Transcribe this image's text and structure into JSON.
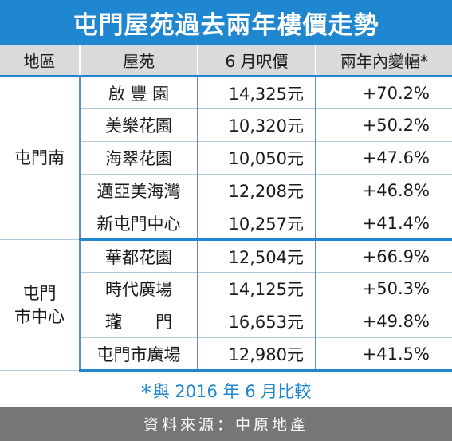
{
  "title": "屯門屋苑過去兩年樓價走勢",
  "headers": {
    "district": "地區",
    "estate": "屋苑",
    "price": "6 月呎價",
    "change": "兩年內變幅*"
  },
  "groups": [
    {
      "district": "屯門南",
      "rows": [
        {
          "estate": "啟 豐 園",
          "price": "14,325元",
          "change": "+70.2%"
        },
        {
          "estate": "美樂花園",
          "price": "10,320元",
          "change": "+50.2%"
        },
        {
          "estate": "海翠花園",
          "price": "10,050元",
          "change": "+47.6%"
        },
        {
          "estate": "邁亞美海灣",
          "price": "12,208元",
          "change": "+46.8%"
        },
        {
          "estate": "新屯門中心",
          "price": "10,257元",
          "change": "+41.4%"
        }
      ]
    },
    {
      "district": "屯門\n市中心",
      "district_line1": "屯門",
      "district_line2": "市中心",
      "rows": [
        {
          "estate": "華都花園",
          "price": "12,504元",
          "change": "+66.9%"
        },
        {
          "estate": "時代廣場",
          "price": "14,125元",
          "change": "+50.3%"
        },
        {
          "estate": "瓏　　門",
          "price": "16,653元",
          "change": "+49.8%"
        },
        {
          "estate": "屯門市廣場",
          "price": "12,980元",
          "change": "+41.5%"
        }
      ]
    }
  ],
  "footnote": {
    "star": "*",
    "text": "與 2016 年 6 月比較"
  },
  "source": "資料來源：中原地產",
  "colors": {
    "title_bg": "#1f86d0",
    "header_bg": "#d9dadb",
    "source_bg": "#767676",
    "footnote_text": "#1f86d0"
  }
}
